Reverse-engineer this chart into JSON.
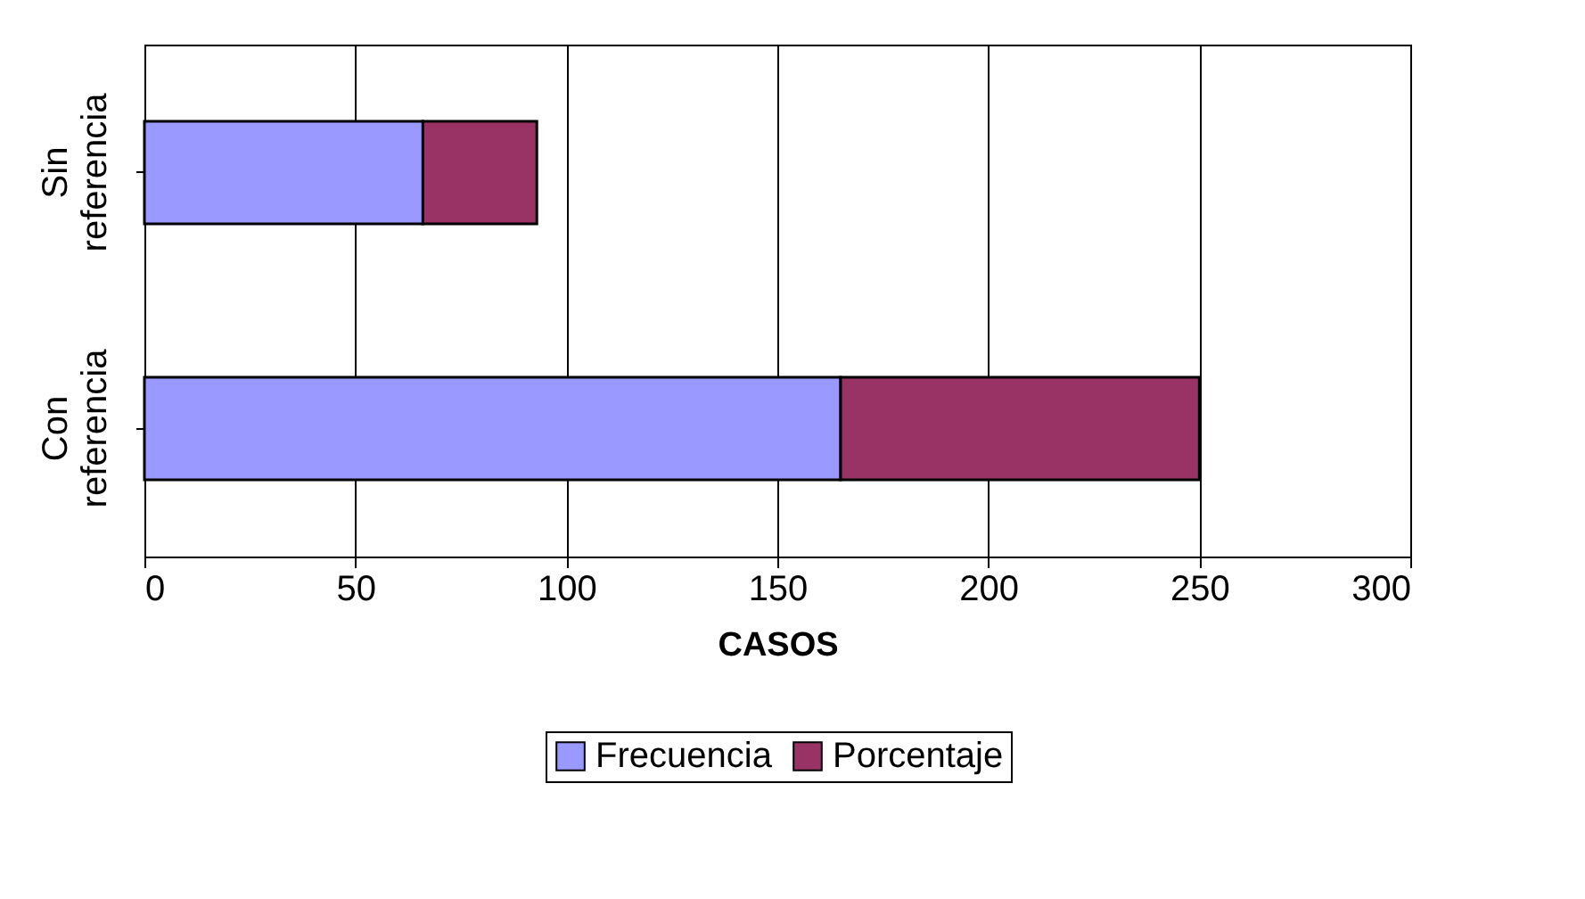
{
  "chart_data": {
    "type": "bar",
    "orientation": "horizontal",
    "stacked": true,
    "xlabel": "CASOS",
    "categories": [
      "Sin referencia",
      "Con referencia"
    ],
    "series": [
      {
        "name": "Frecuencia",
        "color": "#9999ff",
        "values": [
          66,
          165
        ]
      },
      {
        "name": "Porcentaje",
        "color": "#993366",
        "values": [
          27,
          85
        ]
      }
    ],
    "xlim": [
      0,
      300
    ],
    "xticks": [
      0,
      50,
      100,
      150,
      200,
      250,
      300
    ],
    "grid": "x",
    "legend": "bottom"
  }
}
